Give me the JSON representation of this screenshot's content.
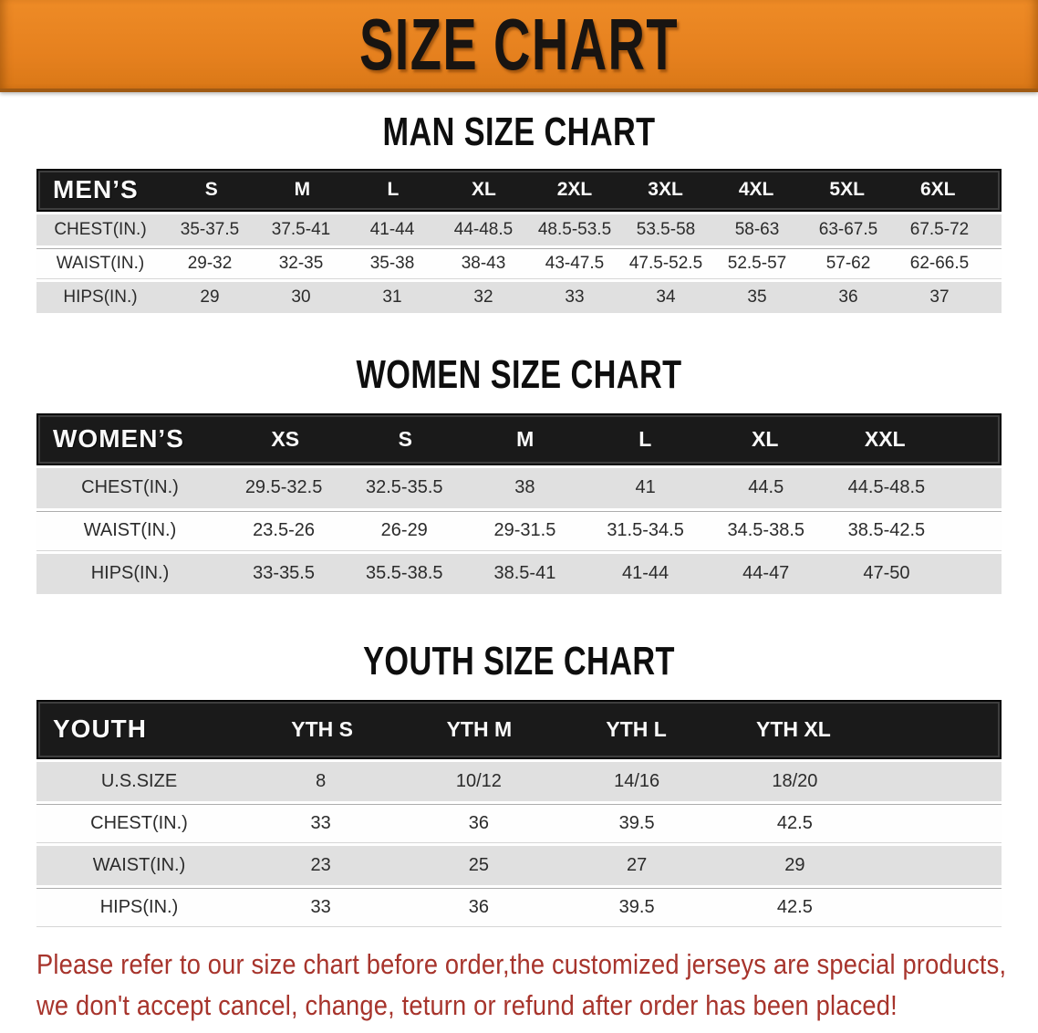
{
  "banner": {
    "title": "SIZE CHART",
    "bg_color": "#E5801E",
    "text_color": "#181411"
  },
  "sections": [
    {
      "id": "men",
      "heading": "MAN SIZE CHART",
      "table": {
        "header_label": "MEN’S",
        "columns": [
          "S",
          "M",
          "L",
          "XL",
          "2XL",
          "3XL",
          "4XL",
          "5XL",
          "6XL"
        ],
        "rows": [
          {
            "label": "CHEST(IN.)",
            "values": [
              "35-37.5",
              "37.5-41",
              "41-44",
              "44-48.5",
              "48.5-53.5",
              "53.5-58",
              "58-63",
              "63-67.5",
              "67.5-72"
            ]
          },
          {
            "label": "WAIST(IN.)",
            "values": [
              "29-32",
              "32-35",
              "35-38",
              "38-43",
              "43-47.5",
              "47.5-52.5",
              "52.5-57",
              "57-62",
              "62-66.5"
            ]
          },
          {
            "label": "HIPS(IN.)",
            "values": [
              "29",
              "30",
              "31",
              "32",
              "33",
              "34",
              "35",
              "36",
              "37"
            ]
          }
        ]
      }
    },
    {
      "id": "women",
      "heading": "WOMEN SIZE CHART",
      "table": {
        "header_label": "WOMEN’S",
        "columns": [
          "XS",
          "S",
          "M",
          "L",
          "XL",
          "XXL"
        ],
        "rows": [
          {
            "label": "CHEST(IN.)",
            "values": [
              "29.5-32.5",
              "32.5-35.5",
              "38",
              "41",
              "44.5",
              "44.5-48.5"
            ]
          },
          {
            "label": "WAIST(IN.)",
            "values": [
              "23.5-26",
              "26-29",
              "29-31.5",
              "31.5-34.5",
              "34.5-38.5",
              "38.5-42.5"
            ]
          },
          {
            "label": "HIPS(IN.)",
            "values": [
              "33-35.5",
              "35.5-38.5",
              "38.5-41",
              "41-44",
              "44-47",
              "47-50"
            ]
          }
        ]
      }
    },
    {
      "id": "youth",
      "heading": "YOUTH SIZE CHART",
      "table": {
        "header_label": "YOUTH",
        "columns": [
          "YTH S",
          "YTH M",
          "YTH L",
          "YTH XL"
        ],
        "rows": [
          {
            "label": "U.S.SIZE",
            "values": [
              "8",
              "10/12",
              "14/16",
              "18/20"
            ]
          },
          {
            "label": "CHEST(IN.)",
            "values": [
              "33",
              "36",
              "39.5",
              "42.5"
            ]
          },
          {
            "label": "WAIST(IN.)",
            "values": [
              "23",
              "25",
              "27",
              "29"
            ]
          },
          {
            "label": "HIPS(IN.)",
            "values": [
              "33",
              "36",
              "39.5",
              "42.5"
            ]
          }
        ]
      }
    }
  ],
  "footer_note": {
    "line1": "Please refer to our size chart before order,the customized jerseys are special products,",
    "line2": "we don't accept cancel, change, teturn or refund after order has been placed!",
    "color": "#A7342C"
  },
  "colors": {
    "table_header_bar": "#1A1A1A",
    "table_row_stripe": "#E0E0E0",
    "table_header_text": "#FAFAFA"
  }
}
